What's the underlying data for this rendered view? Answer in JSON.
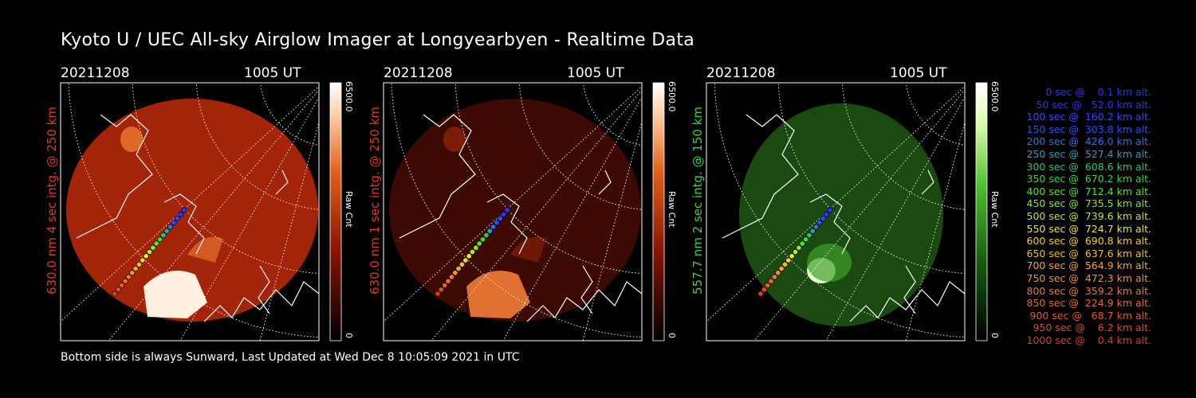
{
  "title": "Kyoto U / UEC All-sky Airglow Imager at Longyearbyen - Realtime Data",
  "footer": "Bottom side is always Sunward, Last Updated at Wed Dec  8 10:05:09 2021 in UTC",
  "panels": [
    {
      "date": "20211208",
      "time": "1005 UT",
      "side_label": "630.0 nm 4 sec intg. @ 250 km",
      "side_color": "#e03a1a",
      "cb_max": "6500.0",
      "cb_min": "0",
      "cb_unit": "Raw Cnt",
      "palette": "red",
      "intensity": "high"
    },
    {
      "date": "20211208",
      "time": "1005 UT",
      "side_label": "630.0 nm 1 sec intg. @ 250 km",
      "side_color": "#e03a1a",
      "cb_max": "6500.0",
      "cb_min": "0",
      "cb_unit": "Raw Cnt",
      "palette": "red",
      "intensity": "low"
    },
    {
      "date": "20211208",
      "time": "1005 UT",
      "side_label": "557.7 nm 2 sec intg. @ 150 km",
      "side_color": "#3bd43b",
      "cb_max": "6500.0",
      "cb_min": "0",
      "cb_unit": "Raw Cnt",
      "palette": "green",
      "intensity": "mid"
    }
  ],
  "chart_data": {
    "type": "heatmap",
    "colorbar_range": [
      0,
      6500
    ],
    "colorbar_unit": "Raw Cnt",
    "trajectory_legend": [
      {
        "label": "   0 sec @    0.1 km alt.",
        "time_s": 0,
        "alt_km": 0.1,
        "color": "#3030ff"
      },
      {
        "label": "  50 sec @   52.0 km alt.",
        "time_s": 50,
        "alt_km": 52.0,
        "color": "#3030ff"
      },
      {
        "label": " 100 sec @  160.2 km alt.",
        "time_s": 100,
        "alt_km": 160.2,
        "color": "#2a4cff"
      },
      {
        "label": " 150 sec @  303.8 km alt.",
        "time_s": 150,
        "alt_km": 303.8,
        "color": "#2a4cff"
      },
      {
        "label": " 200 sec @  426.0 km alt.",
        "time_s": 200,
        "alt_km": 426.0,
        "color": "#2f6fe8"
      },
      {
        "label": " 250 sec @  527.4 km alt.",
        "time_s": 250,
        "alt_km": 527.4,
        "color": "#2aa0b0"
      },
      {
        "label": " 300 sec @  608.6 km alt.",
        "time_s": 300,
        "alt_km": 608.6,
        "color": "#28c86a"
      },
      {
        "label": " 350 sec @  670.2 km alt.",
        "time_s": 350,
        "alt_km": 670.2,
        "color": "#3bd43b"
      },
      {
        "label": " 400 sec @  712.4 km alt.",
        "time_s": 400,
        "alt_km": 712.4,
        "color": "#5ee02a"
      },
      {
        "label": " 450 sec @  735.5 km alt.",
        "time_s": 450,
        "alt_km": 735.5,
        "color": "#8ae62a"
      },
      {
        "label": " 500 sec @  739.6 km alt.",
        "time_s": 500,
        "alt_km": 739.6,
        "color": "#b8ea2a"
      },
      {
        "label": " 550 sec @  724.7 km alt.",
        "time_s": 550,
        "alt_km": 724.7,
        "color": "#e6ea2a"
      },
      {
        "label": " 600 sec @  690.8 km alt.",
        "time_s": 600,
        "alt_km": 690.8,
        "color": "#f2d22a"
      },
      {
        "label": " 650 sec @  637.6 km alt.",
        "time_s": 650,
        "alt_km": 637.6,
        "color": "#f2bc2a"
      },
      {
        "label": " 700 sec @  564.9 km alt.",
        "time_s": 700,
        "alt_km": 564.9,
        "color": "#f2a82a"
      },
      {
        "label": " 750 sec @  472.3 km alt.",
        "time_s": 750,
        "alt_km": 472.3,
        "color": "#f09030"
      },
      {
        "label": " 800 sec @  359.2 km alt.",
        "time_s": 800,
        "alt_km": 359.2,
        "color": "#ec7a30"
      },
      {
        "label": " 850 sec @  224.9 km alt.",
        "time_s": 850,
        "alt_km": 224.9,
        "color": "#e86a30"
      },
      {
        "label": " 900 sec @   68.7 km alt.",
        "time_s": 900,
        "alt_km": 68.7,
        "color": "#e45a2a"
      },
      {
        "label": " 950 sec @    6.2 km alt.",
        "time_s": 950,
        "alt_km": 6.2,
        "color": "#e04a22"
      },
      {
        "label": "1000 sec @    0.4 km alt.",
        "time_s": 1000,
        "alt_km": 0.4,
        "color": "#dc3c1c"
      }
    ]
  }
}
